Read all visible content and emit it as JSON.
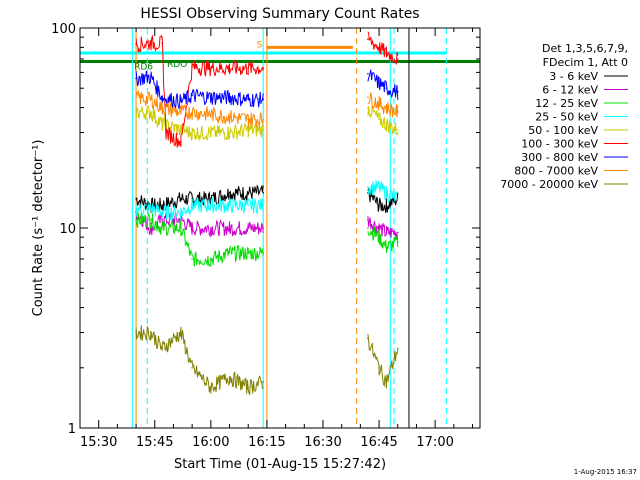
{
  "chart_data": {
    "type": "line",
    "title": "HESSI Observing Summary Count Rates",
    "xlabel": "Start Time (01-Aug-15 15:27:42)",
    "ylabel": "Count Rate (s⁻¹ detector⁻¹)",
    "yscale": "log",
    "ylim": [
      1,
      100
    ],
    "xlim": [
      "15:25",
      "17:12"
    ],
    "x_ticks": [
      "15:30",
      "15:45",
      "16:00",
      "16:15",
      "16:30",
      "16:45",
      "17:00"
    ],
    "y_ticks": [
      "1",
      "10",
      "100"
    ],
    "legend": {
      "header": [
        "Det 1,3,5,6,7,9,",
        "FDecim 1, Att 0"
      ],
      "placement": "right"
    },
    "series": [
      {
        "name": "3 - 6 keV",
        "color": "#000000",
        "points": [
          [
            "15:40",
            14
          ],
          [
            "15:44",
            13
          ],
          [
            "15:47",
            13
          ],
          [
            "15:52",
            14
          ],
          [
            "15:55",
            14
          ],
          [
            "16:00",
            14
          ],
          [
            "16:05",
            15
          ],
          [
            "16:10",
            15
          ],
          [
            "16:14",
            15
          ],
          [
            "16:42",
            15
          ],
          [
            "16:45",
            13
          ],
          [
            "16:47",
            13
          ],
          [
            "16:50",
            14
          ]
        ]
      },
      {
        "name": "6 - 12 keV",
        "color": "#cc00cc",
        "points": [
          [
            "15:40",
            12
          ],
          [
            "15:44",
            10
          ],
          [
            "15:47",
            11
          ],
          [
            "15:52",
            11
          ],
          [
            "15:55",
            10
          ],
          [
            "16:00",
            10
          ],
          [
            "16:05",
            10
          ],
          [
            "16:10",
            10
          ],
          [
            "16:14",
            10
          ],
          [
            "16:42",
            11
          ],
          [
            "16:45",
            10
          ],
          [
            "16:47",
            9.5
          ],
          [
            "16:50",
            9.5
          ]
        ]
      },
      {
        "name": "12 - 25 keV",
        "color": "#00dd00",
        "points": [
          [
            "15:40",
            11
          ],
          [
            "15:44",
            11
          ],
          [
            "15:47",
            10
          ],
          [
            "15:52",
            10
          ],
          [
            "15:55",
            7
          ],
          [
            "16:00",
            7
          ],
          [
            "16:05",
            7.5
          ],
          [
            "16:10",
            7.5
          ],
          [
            "16:14",
            7.5
          ],
          [
            "16:42",
            10
          ],
          [
            "16:45",
            9
          ],
          [
            "16:47",
            8
          ],
          [
            "16:50",
            8.5
          ]
        ]
      },
      {
        "name": "25 - 50 keV",
        "color": "#00ffff",
        "points": [
          [
            "15:40",
            12.5
          ],
          [
            "15:44",
            12.5
          ],
          [
            "15:47",
            12
          ],
          [
            "15:52",
            12
          ],
          [
            "15:55",
            13
          ],
          [
            "16:00",
            13
          ],
          [
            "16:05",
            13
          ],
          [
            "16:10",
            13
          ],
          [
            "16:14",
            13
          ],
          [
            "16:42",
            16
          ],
          [
            "16:45",
            16
          ],
          [
            "16:47",
            15
          ],
          [
            "16:50",
            14
          ]
        ]
      },
      {
        "name": "50 - 100 keV",
        "color": "#cccc00",
        "points": [
          [
            "15:40",
            38
          ],
          [
            "15:44",
            38
          ],
          [
            "15:47",
            33
          ],
          [
            "15:52",
            31
          ],
          [
            "15:55",
            30
          ],
          [
            "16:00",
            30
          ],
          [
            "16:05",
            30
          ],
          [
            "16:10",
            31
          ],
          [
            "16:14",
            31
          ],
          [
            "16:42",
            40
          ],
          [
            "16:45",
            35
          ],
          [
            "16:47",
            33
          ],
          [
            "16:50",
            31
          ]
        ]
      },
      {
        "name": "100 - 300 keV",
        "color": "#ff0000",
        "points": [
          [
            "15:40",
            83
          ],
          [
            "15:44",
            84
          ],
          [
            "15:47",
            84
          ],
          [
            "15:48",
            30
          ],
          [
            "15:52",
            27
          ],
          [
            "15:55",
            64
          ],
          [
            "16:00",
            63
          ],
          [
            "16:05",
            63
          ],
          [
            "16:10",
            63
          ],
          [
            "16:14",
            63
          ],
          [
            "16:42",
            88
          ],
          [
            "16:45",
            80
          ],
          [
            "16:47",
            75
          ],
          [
            "16:50",
            70
          ]
        ]
      },
      {
        "name": "300 - 800 keV",
        "color": "#0000ff",
        "points": [
          [
            "15:40",
            56
          ],
          [
            "15:44",
            57
          ],
          [
            "15:47",
            45
          ],
          [
            "15:52",
            43
          ],
          [
            "15:55",
            46
          ],
          [
            "16:00",
            45
          ],
          [
            "16:05",
            45
          ],
          [
            "16:10",
            44
          ],
          [
            "16:14",
            44
          ],
          [
            "16:42",
            59
          ],
          [
            "16:45",
            53
          ],
          [
            "16:47",
            50
          ],
          [
            "16:50",
            48
          ]
        ]
      },
      {
        "name": "800 - 7000 keV",
        "color": "#ff8800",
        "points": [
          [
            "15:40",
            45
          ],
          [
            "15:44",
            44
          ],
          [
            "15:47",
            40
          ],
          [
            "15:52",
            38
          ],
          [
            "15:55",
            38
          ],
          [
            "16:00",
            37
          ],
          [
            "16:05",
            36
          ],
          [
            "16:10",
            35
          ],
          [
            "16:14",
            35
          ],
          [
            "16:42",
            45
          ],
          [
            "16:45",
            42
          ],
          [
            "16:47",
            40
          ],
          [
            "16:50",
            38
          ]
        ]
      },
      {
        "name": "7000 - 20000 keV",
        "color": "#808000",
        "points": [
          [
            "15:40",
            3
          ],
          [
            "15:44",
            3
          ],
          [
            "15:47",
            2.5
          ],
          [
            "15:52",
            3
          ],
          [
            "15:55",
            2
          ],
          [
            "16:00",
            1.6
          ],
          [
            "16:05",
            1.8
          ],
          [
            "16:10",
            1.6
          ],
          [
            "16:14",
            1.7
          ],
          [
            "16:42",
            2.8
          ],
          [
            "16:45",
            2
          ],
          [
            "16:47",
            1.7
          ],
          [
            "16:50",
            2.5
          ]
        ]
      }
    ],
    "annotations": [
      {
        "label": "RD6",
        "time": "15:42",
        "level": 62,
        "color": "#008000"
      },
      {
        "label": "RDO",
        "time": "15:51",
        "level": 64,
        "color": "#008000"
      },
      {
        "label": "S",
        "time": "16:13",
        "level": 80,
        "color": "#ff8800"
      }
    ],
    "threshold_lines": [
      {
        "level": 75,
        "color": "#00ffff",
        "from": "15:25",
        "to": "17:03"
      },
      {
        "level": 68,
        "color": "#008000",
        "from": "15:25",
        "to": "17:12"
      },
      {
        "level": 80,
        "color": "#ff8800",
        "from": "16:15",
        "to": "16:38"
      }
    ],
    "vertical_markers": [
      {
        "time": "15:39",
        "color": "#00ffff",
        "style": "solid"
      },
      {
        "time": "15:43",
        "color": "#00ffff",
        "style": "dashed"
      },
      {
        "time": "15:40",
        "color": "#ff8800",
        "style": "solid"
      },
      {
        "time": "16:14",
        "color": "#00ffff",
        "style": "solid"
      },
      {
        "time": "16:15",
        "color": "#ff8800",
        "style": "solid"
      },
      {
        "time": "16:39",
        "color": "#ff8800",
        "style": "dashed"
      },
      {
        "time": "16:48",
        "color": "#00ffff",
        "style": "solid"
      },
      {
        "time": "16:49",
        "color": "#00ffff",
        "style": "dashed"
      },
      {
        "time": "16:53",
        "color": "#000000",
        "style": "solid"
      },
      {
        "time": "17:03",
        "color": "#00ffff",
        "style": "dashed"
      }
    ],
    "footer_timestamp": "1-Aug-2015 16:37"
  }
}
